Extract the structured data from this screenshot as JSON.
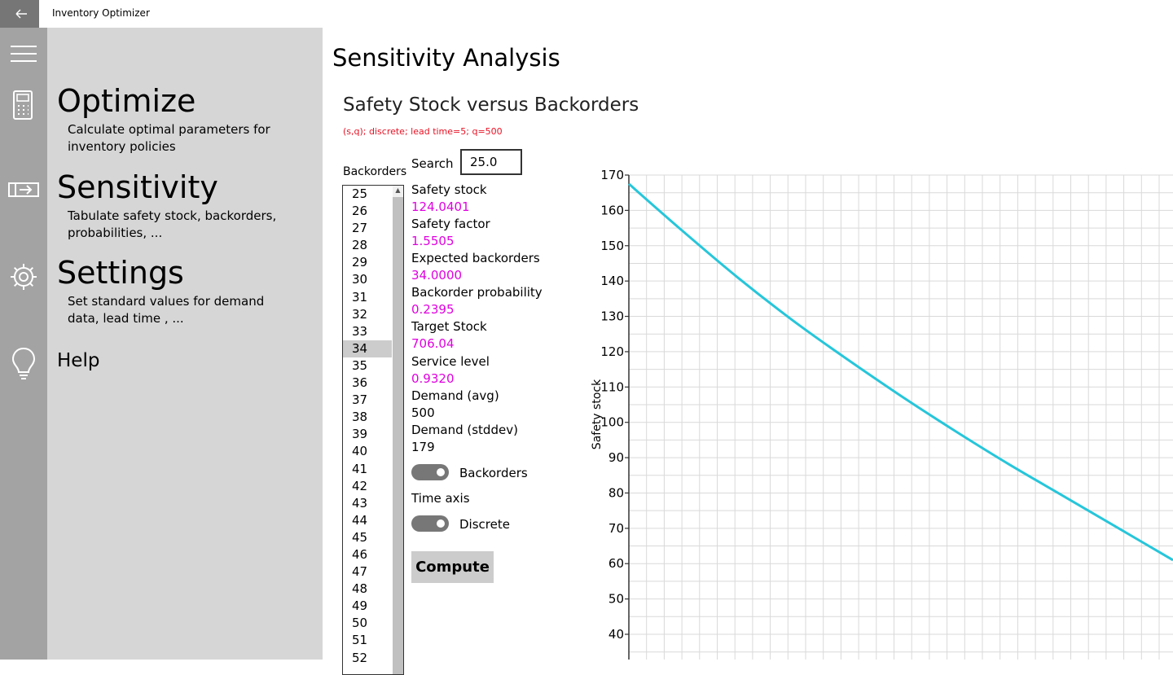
{
  "window": {
    "title": "Inventory Optimizer"
  },
  "nav": {
    "optimize": {
      "title": "Optimize",
      "desc": "Calculate optimal parameters for inventory policies"
    },
    "sensitivity": {
      "title": "Sensitivity",
      "desc": "Tabulate safety stock, backorders, probabilities, ..."
    },
    "settings": {
      "title": "Settings",
      "desc": "Set standard values for demand data,  lead time , ..."
    },
    "help": {
      "title": "Help"
    }
  },
  "page": {
    "title": "Sensitivity Analysis",
    "section_title": "Safety Stock versus Backorders",
    "subtitle": "(s,q); discrete; lead time=5; q=500"
  },
  "backorders": {
    "label": "Backorders",
    "items": [
      "25",
      "26",
      "27",
      "28",
      "29",
      "30",
      "31",
      "32",
      "33",
      "34",
      "35",
      "36",
      "37",
      "38",
      "39",
      "40",
      "41",
      "42",
      "43",
      "44",
      "45",
      "46",
      "47",
      "48",
      "49",
      "50",
      "51",
      "52"
    ],
    "selected": "34"
  },
  "search": {
    "label": "Search",
    "value": "25.0"
  },
  "stats": [
    {
      "label": "Safety stock",
      "value": "124.0401",
      "highlight": true
    },
    {
      "label": "Safety factor",
      "value": "1.5505",
      "highlight": true
    },
    {
      "label": "Expected backorders",
      "value": "34.0000",
      "highlight": true
    },
    {
      "label": "Backorder probability",
      "value": "0.2395",
      "highlight": true
    },
    {
      "label": "Target Stock",
      "value": "706.04",
      "highlight": true
    },
    {
      "label": "Service level",
      "value": "0.9320",
      "highlight": true
    },
    {
      "label": "Demand (avg)",
      "value": "500",
      "highlight": false
    },
    {
      "label": "Demand (stddev)",
      "value": "179",
      "highlight": false
    }
  ],
  "toggles": {
    "backorders": {
      "label": "Backorders",
      "on": true
    },
    "time_axis_label": "Time axis",
    "discrete": {
      "label": "Discrete",
      "on": true
    }
  },
  "compute_label": "Compute",
  "colors": {
    "highlight": "#e000e0",
    "subtitle": "#e81123",
    "line": "#26c6da",
    "rail": "#a3a3a3",
    "pane": "#d6d6d6"
  },
  "chart_data": {
    "type": "line",
    "title": "",
    "xlabel": "",
    "ylabel": "Safety stock",
    "ylim": [
      35,
      170
    ],
    "yticks": [
      170,
      160,
      150,
      140,
      130,
      120,
      110,
      100,
      90,
      80,
      70,
      60,
      50,
      40
    ],
    "grid": true,
    "series": [
      {
        "x": [
          0,
          1,
          2,
          3,
          4,
          5,
          6,
          7,
          8,
          9,
          10
        ],
        "values": [
          167.5,
          154,
          141,
          129,
          118,
          107.5,
          97.5,
          88,
          79,
          70,
          61
        ]
      }
    ]
  }
}
